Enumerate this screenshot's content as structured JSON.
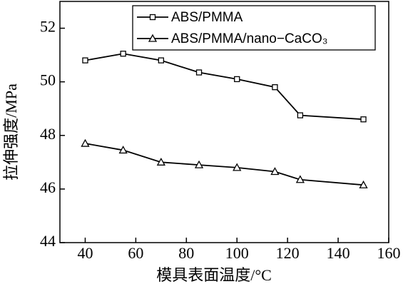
{
  "chart_data": {
    "type": "line",
    "x_label": "模具表面温度/°C",
    "y_label": "拉伸强度/MPa",
    "xlim": [
      30,
      160
    ],
    "xticks": [
      40,
      60,
      80,
      100,
      120,
      140,
      160
    ],
    "ylim": [
      44,
      53
    ],
    "yticks": [
      44,
      46,
      48,
      50,
      52
    ],
    "legend": "top",
    "series": [
      {
        "name": "ABS/PMMA",
        "color": "#000000",
        "marker": "square",
        "x": [
          40,
          55,
          70,
          85,
          100,
          115,
          125,
          150
        ],
        "values": [
          50.8,
          51.05,
          50.8,
          50.35,
          50.1,
          49.8,
          48.75,
          48.6
        ]
      },
      {
        "name": "ABS/PMMA/nano−CaCO₃",
        "color": "#000000",
        "marker": "triangle",
        "x": [
          40,
          55,
          70,
          85,
          100,
          115,
          125,
          150
        ],
        "values": [
          47.7,
          47.45,
          47.0,
          46.9,
          46.8,
          46.65,
          46.35,
          46.15
        ]
      }
    ]
  }
}
